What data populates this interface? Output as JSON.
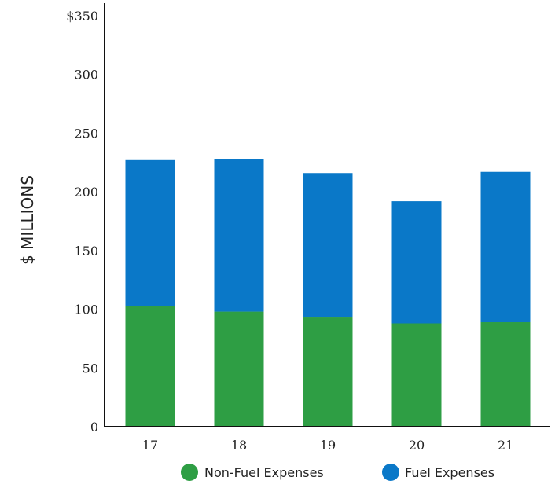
{
  "chart_data": {
    "type": "bar",
    "stacked": true,
    "categories": [
      "17",
      "18",
      "19",
      "20",
      "21"
    ],
    "series": [
      {
        "name": "Non-Fuel Expenses",
        "values": [
          103,
          98,
          93,
          88,
          89
        ],
        "color": "#2e9e44"
      },
      {
        "name": "Fuel Expenses",
        "values": [
          124,
          130,
          123,
          104,
          128
        ],
        "color": "#0a78c8"
      }
    ],
    "ylabel": "$ MILLIONS",
    "ylim": [
      0,
      350
    ],
    "yticks": [
      0,
      50,
      100,
      150,
      200,
      250,
      300,
      350
    ],
    "ytick_labels": [
      "0",
      "50",
      "100",
      "150",
      "200",
      "250",
      "300",
      "$350"
    ],
    "grid": false,
    "legend": "bottom"
  }
}
